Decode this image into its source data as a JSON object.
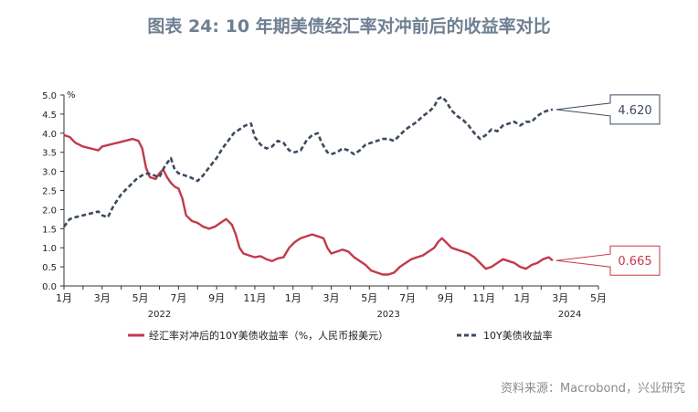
{
  "title": "图表 24: 10 年期美债经汇率对冲前后的收益率对比",
  "source": "资料来源：Macrobond，兴业研究",
  "chart_data": {
    "type": "line",
    "ylabel": "%",
    "ylim": [
      0,
      5
    ],
    "yticks": [
      "0.0",
      "0.5",
      "1.0",
      "1.5",
      "2.0",
      "2.5",
      "3.0",
      "3.5",
      "4.0",
      "4.5",
      "5.0"
    ],
    "x_month_labels": [
      "1月",
      "3月",
      "5月",
      "7月",
      "9月",
      "11月",
      "1月",
      "3月",
      "5月",
      "7月",
      "9月",
      "11月",
      "1月",
      "3月",
      "5月"
    ],
    "x_year_labels": [
      "2022",
      "2023",
      "2024"
    ],
    "grid": false,
    "legend_position": "bottom",
    "series": [
      {
        "name": "经汇率对冲后的10Y美债收益率（%，人民币报美元）",
        "color": "#c23a4b",
        "last_value_label": "0.665",
        "points": [
          [
            0,
            3.95
          ],
          [
            0.3,
            3.9
          ],
          [
            0.6,
            3.75
          ],
          [
            1.0,
            3.65
          ],
          [
            1.4,
            3.6
          ],
          [
            1.8,
            3.55
          ],
          [
            2.0,
            3.65
          ],
          [
            2.4,
            3.7
          ],
          [
            2.8,
            3.75
          ],
          [
            3.2,
            3.8
          ],
          [
            3.6,
            3.85
          ],
          [
            3.9,
            3.8
          ],
          [
            4.1,
            3.6
          ],
          [
            4.3,
            3.1
          ],
          [
            4.5,
            2.85
          ],
          [
            4.8,
            2.8
          ],
          [
            5.0,
            2.95
          ],
          [
            5.2,
            3.05
          ],
          [
            5.4,
            2.85
          ],
          [
            5.6,
            2.7
          ],
          [
            5.8,
            2.6
          ],
          [
            6.0,
            2.55
          ],
          [
            6.2,
            2.3
          ],
          [
            6.4,
            1.85
          ],
          [
            6.7,
            1.7
          ],
          [
            7.0,
            1.65
          ],
          [
            7.3,
            1.55
          ],
          [
            7.6,
            1.5
          ],
          [
            7.9,
            1.55
          ],
          [
            8.2,
            1.65
          ],
          [
            8.5,
            1.75
          ],
          [
            8.8,
            1.6
          ],
          [
            9.0,
            1.35
          ],
          [
            9.2,
            1.0
          ],
          [
            9.4,
            0.85
          ],
          [
            9.7,
            0.8
          ],
          [
            10.0,
            0.75
          ],
          [
            10.3,
            0.78
          ],
          [
            10.6,
            0.7
          ],
          [
            10.9,
            0.65
          ],
          [
            11.2,
            0.72
          ],
          [
            11.5,
            0.75
          ],
          [
            11.8,
            1.0
          ],
          [
            12.1,
            1.15
          ],
          [
            12.4,
            1.25
          ],
          [
            12.7,
            1.3
          ],
          [
            13.0,
            1.35
          ],
          [
            13.3,
            1.3
          ],
          [
            13.6,
            1.25
          ],
          [
            13.8,
            1.0
          ],
          [
            14.0,
            0.85
          ],
          [
            14.3,
            0.9
          ],
          [
            14.6,
            0.95
          ],
          [
            14.9,
            0.9
          ],
          [
            15.2,
            0.75
          ],
          [
            15.5,
            0.65
          ],
          [
            15.8,
            0.55
          ],
          [
            16.1,
            0.4
          ],
          [
            16.4,
            0.35
          ],
          [
            16.7,
            0.3
          ],
          [
            17.0,
            0.3
          ],
          [
            17.3,
            0.35
          ],
          [
            17.6,
            0.5
          ],
          [
            17.9,
            0.6
          ],
          [
            18.2,
            0.7
          ],
          [
            18.5,
            0.75
          ],
          [
            18.8,
            0.8
          ],
          [
            19.1,
            0.9
          ],
          [
            19.4,
            1.0
          ],
          [
            19.6,
            1.15
          ],
          [
            19.8,
            1.25
          ],
          [
            20.0,
            1.15
          ],
          [
            20.3,
            1.0
          ],
          [
            20.6,
            0.95
          ],
          [
            20.9,
            0.9
          ],
          [
            21.2,
            0.85
          ],
          [
            21.5,
            0.75
          ],
          [
            21.8,
            0.6
          ],
          [
            22.1,
            0.45
          ],
          [
            22.4,
            0.5
          ],
          [
            22.7,
            0.6
          ],
          [
            23.0,
            0.7
          ],
          [
            23.3,
            0.65
          ],
          [
            23.6,
            0.6
          ],
          [
            23.9,
            0.5
          ],
          [
            24.2,
            0.45
          ],
          [
            24.5,
            0.55
          ],
          [
            24.8,
            0.6
          ],
          [
            25.1,
            0.7
          ],
          [
            25.4,
            0.75
          ],
          [
            25.6,
            0.665
          ]
        ]
      },
      {
        "name": "10Y美债收益率",
        "color": "#3d4a5e",
        "dashed": true,
        "last_value_label": "4.620",
        "points": [
          [
            0,
            1.55
          ],
          [
            0.3,
            1.75
          ],
          [
            0.6,
            1.8
          ],
          [
            1.0,
            1.85
          ],
          [
            1.4,
            1.9
          ],
          [
            1.8,
            1.95
          ],
          [
            2.0,
            1.85
          ],
          [
            2.3,
            1.8
          ],
          [
            2.6,
            2.1
          ],
          [
            3.0,
            2.4
          ],
          [
            3.4,
            2.6
          ],
          [
            3.8,
            2.8
          ],
          [
            4.1,
            2.9
          ],
          [
            4.4,
            2.95
          ],
          [
            4.7,
            2.9
          ],
          [
            5.0,
            2.85
          ],
          [
            5.3,
            3.15
          ],
          [
            5.6,
            3.35
          ],
          [
            5.8,
            3.05
          ],
          [
            6.0,
            2.95
          ],
          [
            6.3,
            2.9
          ],
          [
            6.6,
            2.85
          ],
          [
            7.0,
            2.75
          ],
          [
            7.3,
            2.9
          ],
          [
            7.6,
            3.1
          ],
          [
            8.0,
            3.35
          ],
          [
            8.3,
            3.6
          ],
          [
            8.6,
            3.8
          ],
          [
            8.9,
            4.0
          ],
          [
            9.2,
            4.1
          ],
          [
            9.5,
            4.2
          ],
          [
            9.8,
            4.25
          ],
          [
            10.0,
            3.9
          ],
          [
            10.3,
            3.7
          ],
          [
            10.6,
            3.6
          ],
          [
            10.9,
            3.65
          ],
          [
            11.2,
            3.8
          ],
          [
            11.5,
            3.75
          ],
          [
            11.8,
            3.55
          ],
          [
            12.1,
            3.5
          ],
          [
            12.4,
            3.55
          ],
          [
            12.7,
            3.8
          ],
          [
            13.0,
            3.95
          ],
          [
            13.3,
            4.0
          ],
          [
            13.5,
            3.75
          ],
          [
            13.8,
            3.5
          ],
          [
            14.0,
            3.45
          ],
          [
            14.3,
            3.5
          ],
          [
            14.6,
            3.6
          ],
          [
            14.9,
            3.55
          ],
          [
            15.2,
            3.45
          ],
          [
            15.5,
            3.55
          ],
          [
            15.8,
            3.7
          ],
          [
            16.1,
            3.75
          ],
          [
            16.4,
            3.8
          ],
          [
            16.7,
            3.85
          ],
          [
            17.0,
            3.85
          ],
          [
            17.3,
            3.8
          ],
          [
            17.6,
            3.95
          ],
          [
            17.9,
            4.1
          ],
          [
            18.2,
            4.2
          ],
          [
            18.5,
            4.3
          ],
          [
            18.8,
            4.45
          ],
          [
            19.1,
            4.55
          ],
          [
            19.4,
            4.7
          ],
          [
            19.6,
            4.9
          ],
          [
            19.8,
            4.95
          ],
          [
            20.0,
            4.85
          ],
          [
            20.3,
            4.6
          ],
          [
            20.6,
            4.45
          ],
          [
            20.9,
            4.35
          ],
          [
            21.2,
            4.2
          ],
          [
            21.5,
            4.0
          ],
          [
            21.8,
            3.85
          ],
          [
            22.1,
            3.95
          ],
          [
            22.4,
            4.1
          ],
          [
            22.7,
            4.05
          ],
          [
            23.0,
            4.2
          ],
          [
            23.3,
            4.25
          ],
          [
            23.6,
            4.3
          ],
          [
            23.9,
            4.2
          ],
          [
            24.2,
            4.3
          ],
          [
            24.5,
            4.3
          ],
          [
            24.8,
            4.45
          ],
          [
            25.1,
            4.55
          ],
          [
            25.4,
            4.6
          ],
          [
            25.6,
            4.62
          ]
        ]
      }
    ]
  }
}
